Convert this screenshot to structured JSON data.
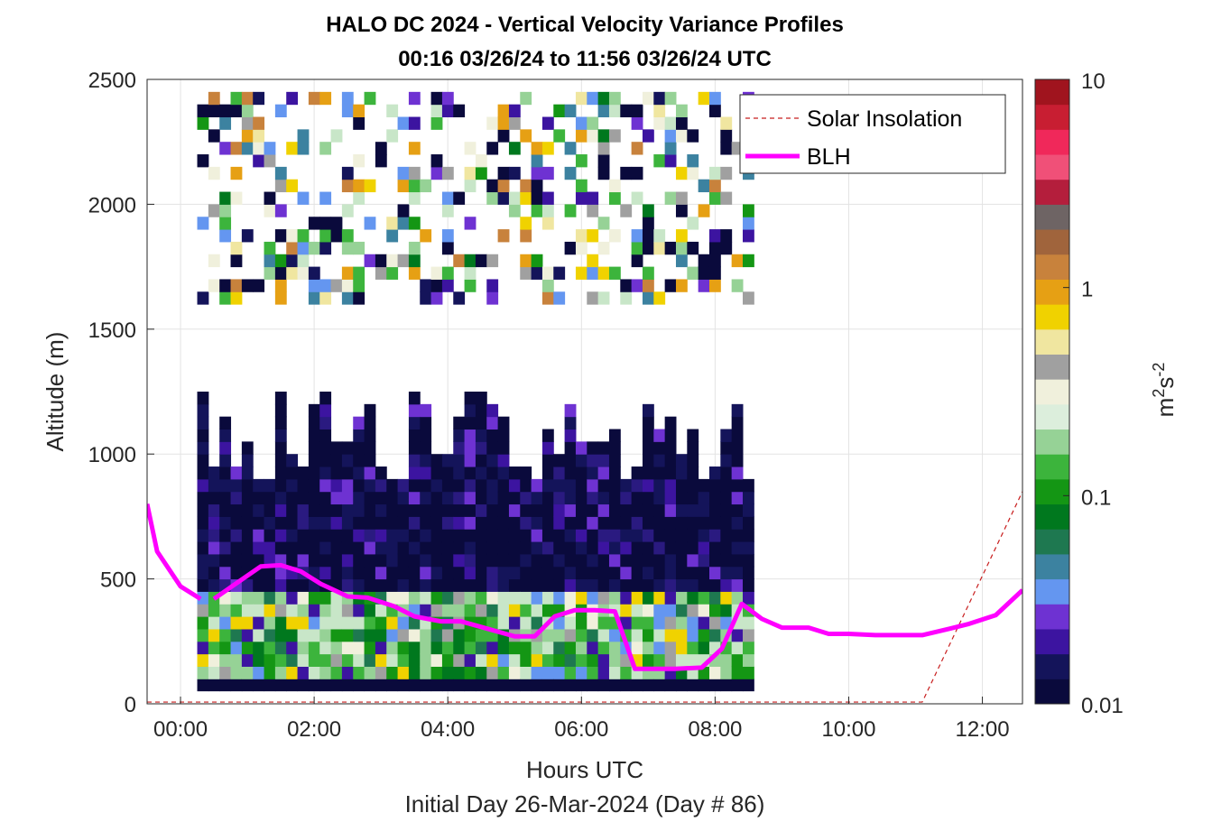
{
  "chart_data": {
    "type": "heatmap",
    "title": "HALO DC 2024 - Vertical Velocity Variance Profiles",
    "subtitle": "00:16 03/26/24 to 11:56 03/26/24  UTC",
    "xlabel": "Hours UTC",
    "xlabel2": "Initial Day 26-Mar-2024 (Day # 86)",
    "ylabel": "Altitude (m)",
    "xlim": [
      -0.5,
      12.6
    ],
    "ylim": [
      0,
      2500
    ],
    "x_ticks": [
      0,
      2,
      4,
      6,
      8,
      10,
      12
    ],
    "x_tick_labels": [
      "00:00",
      "02:00",
      "04:00",
      "06:00",
      "08:00",
      "10:00",
      "12:00"
    ],
    "y_ticks": [
      0,
      500,
      1000,
      1500,
      2000,
      2500
    ],
    "y_tick_labels": [
      "0",
      "500",
      "1000",
      "1500",
      "2000",
      "2500"
    ],
    "grid": true,
    "legend_position": "top-right",
    "colorbar": {
      "scale": "log",
      "range": [
        0.01,
        10
      ],
      "ticks": [
        0.01,
        0.1,
        1,
        10
      ],
      "tick_labels": [
        "0.01",
        "0.1",
        "1",
        "10"
      ],
      "label_base": "m",
      "label_sup1": "2",
      "label_mid": "s",
      "label_sup2": "-2",
      "colors": [
        "#0a0a3c",
        "#14145a",
        "#3c14a0",
        "#6e32d2",
        "#6496f0",
        "#3c82a0",
        "#1e7850",
        "#00781e",
        "#149614",
        "#3cb43c",
        "#96d296",
        "#dceedc",
        "#f0f0dc",
        "#a0a0a0",
        "#f0e6a0",
        "#f0d200",
        "#e6a014",
        "#c8823c",
        "#a0643c",
        "#6e6464",
        "#b41e3c",
        "#f05078",
        "#f0285a",
        "#c81e32",
        "#a0141e"
      ]
    },
    "series": [
      {
        "name": "Solar Insolation",
        "x": [
          -0.5,
          11.1,
          12.6
        ],
        "y": [
          7,
          7,
          850
        ]
      },
      {
        "name": "BLH",
        "segments": [
          {
            "x": [
              -0.5,
              -0.35,
              0.0,
              0.3
            ],
            "y": [
              800,
              610,
              470,
              420
            ]
          },
          {
            "x": [
              0.5,
              1.2,
              1.5,
              1.8,
              2.1,
              2.5,
              2.8,
              3.2,
              3.5,
              3.9,
              4.2,
              4.6,
              5.0,
              5.3,
              5.6,
              5.9,
              6.2,
              6.5,
              6.8,
              7.1,
              7.4,
              7.8,
              8.1,
              8.4,
              8.7,
              9.0,
              9.4,
              9.7,
              10.0,
              10.4,
              10.8,
              11.1,
              11.5,
              11.8,
              12.2,
              12.6
            ],
            "y": [
              420,
              550,
              555,
              530,
              480,
              430,
              425,
              390,
              350,
              330,
              330,
              300,
              270,
              270,
              350,
              375,
              375,
              370,
              140,
              140,
              140,
              145,
              220,
              400,
              340,
              305,
              305,
              280,
              280,
              275,
              275,
              275,
              300,
              320,
              355,
              455
            ]
          }
        ]
      }
    ],
    "heatmap_cells": {
      "x_start": 0.25,
      "x_step": 0.1666,
      "y_step": 50,
      "palette": [
        "#0a0a3c",
        "#14145a",
        "#2a1a80",
        "#3c14a0",
        "#6e32d2",
        "#6496f0",
        "#3c82a0",
        "#1e7850",
        "#00781e",
        "#149614",
        "#3cb43c",
        "#96d296",
        "#c8e6c8",
        "#f0f0dc",
        "#a0a0a0",
        "#f0e6a0",
        "#f0d200",
        "#e6a014",
        "#c8823c"
      ],
      "note_low_band": [
        75,
        725
      ],
      "note_mid_band": [
        725,
        1300
      ],
      "note_high_band": [
        1600,
        2450
      ]
    }
  }
}
